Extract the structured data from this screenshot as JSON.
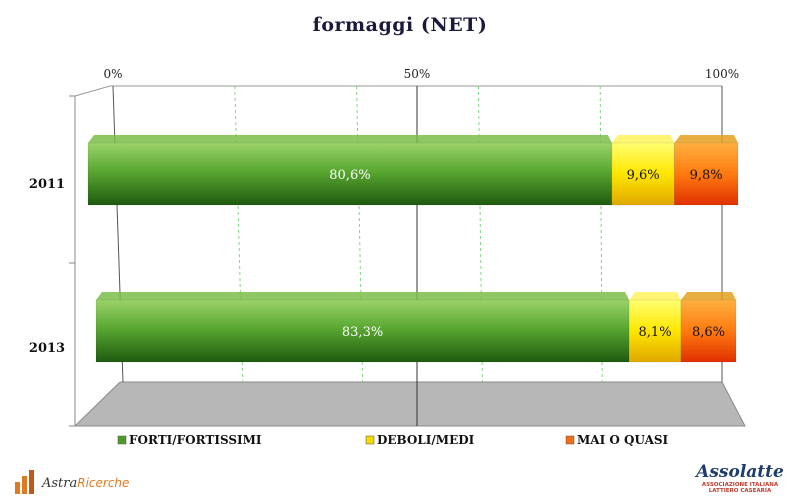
{
  "chart_data": {
    "type": "bar",
    "orientation": "horizontal",
    "stacked": true,
    "title": "formaggi (NET)",
    "categories": [
      "2011",
      "2013"
    ],
    "x_ticks": [
      "0%",
      "50%",
      "100%"
    ],
    "xlim": [
      0,
      100
    ],
    "series": [
      {
        "name": "FORTI/FORTISSIMI",
        "values": [
          80.6,
          83.3
        ],
        "labels": [
          "80,6%",
          "83,3%"
        ],
        "color": "#4e9a28"
      },
      {
        "name": "DEBOLI/MEDI",
        "values": [
          9.6,
          8.1
        ],
        "labels": [
          "9,6%",
          "8,1%"
        ],
        "color": "#f5d800"
      },
      {
        "name": "MAI O QUASI",
        "values": [
          9.8,
          8.6
        ],
        "labels": [
          "9,8%",
          "8,6%"
        ],
        "color": "#f07010"
      }
    ],
    "legend_position": "bottom",
    "grid": true
  },
  "logos": {
    "left": {
      "name_a": "Astra",
      "name_b": "Ricerche"
    },
    "right": {
      "name": "Assolatte",
      "subtitle_1": "ASSOCIAZIONE ITALIANA",
      "subtitle_2": "LATTIERO CASEARIA"
    }
  }
}
